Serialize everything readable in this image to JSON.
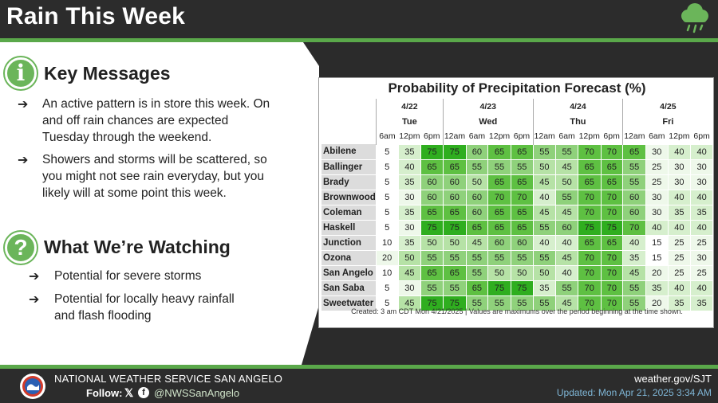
{
  "header": {
    "title": "Rain This Week"
  },
  "key_messages": {
    "heading": "Key Messages",
    "bullets": [
      [
        "An active pattern is in store this week. On",
        "and off rain chances are expected",
        "Tuesday through the weekend."
      ],
      [
        "Showers and storms will be scattered, so",
        "you might not see rain everyday, but you",
        "likely will at some point this week."
      ]
    ]
  },
  "watching": {
    "heading": "What We’re Watching",
    "bullets": [
      [
        "Potential for severe storms"
      ],
      [
        "Potential for locally heavy rainfall",
        "and flash flooding"
      ]
    ]
  },
  "arrow_glyph": "➔",
  "table": {
    "title": "Probability of Precipitation Forecast (%)",
    "footer": "Created: 3 am CDT Mon 4/21/2025  |  Values are maximums over the period beginning at the time shown.",
    "days": [
      {
        "date": "4/22",
        "name": "Tue",
        "hours": [
          "6am",
          "12pm",
          "6pm"
        ]
      },
      {
        "date": "4/23",
        "name": "Wed",
        "hours": [
          "12am",
          "6am",
          "12pm",
          "6pm"
        ]
      },
      {
        "date": "4/24",
        "name": "Thu",
        "hours": [
          "12am",
          "6am",
          "12pm",
          "6pm"
        ]
      },
      {
        "date": "4/25",
        "name": "Fri",
        "hours": [
          "12am",
          "6am",
          "12pm",
          "6pm"
        ]
      }
    ],
    "rows": [
      {
        "city": "Abilene",
        "values": [
          5,
          35,
          75,
          75,
          60,
          65,
          65,
          55,
          55,
          70,
          70,
          65,
          30,
          40,
          40
        ]
      },
      {
        "city": "Ballinger",
        "values": [
          5,
          40,
          65,
          65,
          55,
          55,
          55,
          50,
          45,
          65,
          65,
          55,
          25,
          30,
          30
        ]
      },
      {
        "city": "Brady",
        "values": [
          5,
          35,
          60,
          60,
          50,
          65,
          65,
          45,
          50,
          65,
          65,
          55,
          25,
          30,
          30
        ]
      },
      {
        "city": "Brownwood",
        "values": [
          5,
          30,
          60,
          60,
          60,
          70,
          70,
          40,
          55,
          70,
          70,
          60,
          30,
          40,
          40
        ]
      },
      {
        "city": "Coleman",
        "values": [
          5,
          35,
          65,
          65,
          60,
          65,
          65,
          45,
          45,
          70,
          70,
          60,
          30,
          35,
          35
        ]
      },
      {
        "city": "Haskell",
        "values": [
          5,
          30,
          75,
          75,
          65,
          65,
          65,
          55,
          60,
          75,
          75,
          70,
          40,
          40,
          40
        ]
      },
      {
        "city": "Junction",
        "values": [
          10,
          35,
          50,
          50,
          45,
          60,
          60,
          40,
          40,
          65,
          65,
          40,
          15,
          25,
          25
        ]
      },
      {
        "city": "Ozona",
        "values": [
          20,
          50,
          55,
          55,
          55,
          55,
          55,
          55,
          45,
          70,
          70,
          35,
          15,
          25,
          30
        ]
      },
      {
        "city": "San Angelo",
        "values": [
          10,
          45,
          65,
          65,
          55,
          50,
          50,
          50,
          40,
          70,
          70,
          45,
          20,
          25,
          25
        ]
      },
      {
        "city": "San Saba",
        "values": [
          5,
          30,
          55,
          55,
          65,
          75,
          75,
          35,
          55,
          70,
          70,
          55,
          35,
          40,
          40
        ]
      },
      {
        "city": "Sweetwater",
        "values": [
          5,
          45,
          75,
          75,
          55,
          55,
          55,
          55,
          45,
          70,
          70,
          55,
          20,
          35,
          35
        ]
      }
    ]
  },
  "footer": {
    "org": "NATIONAL WEATHER SERVICE SAN ANGELO",
    "follow": "Follow:",
    "x_glyph": "𝕏",
    "fb_glyph": "f",
    "handle": "@NWSSanAngelo",
    "website": "weather.gov/SJT",
    "updated": "Updated: Mon Apr 21, 2025 3:34 AM"
  },
  "icons": [
    "rain-cloud-icon",
    "info-icon",
    "question-icon",
    "arrow-icon",
    "x-icon",
    "facebook-icon",
    "nws-logo"
  ],
  "colors": {
    "accent_green": "#5aa84a",
    "icon_green": "#6bb55a",
    "updated_blue": "#7fb6d6",
    "scale": [
      "#ffffff",
      "#eef8ea",
      "#d6efcd",
      "#b6e2a6",
      "#8fd17b",
      "#5ec042",
      "#2fae1f"
    ]
  }
}
